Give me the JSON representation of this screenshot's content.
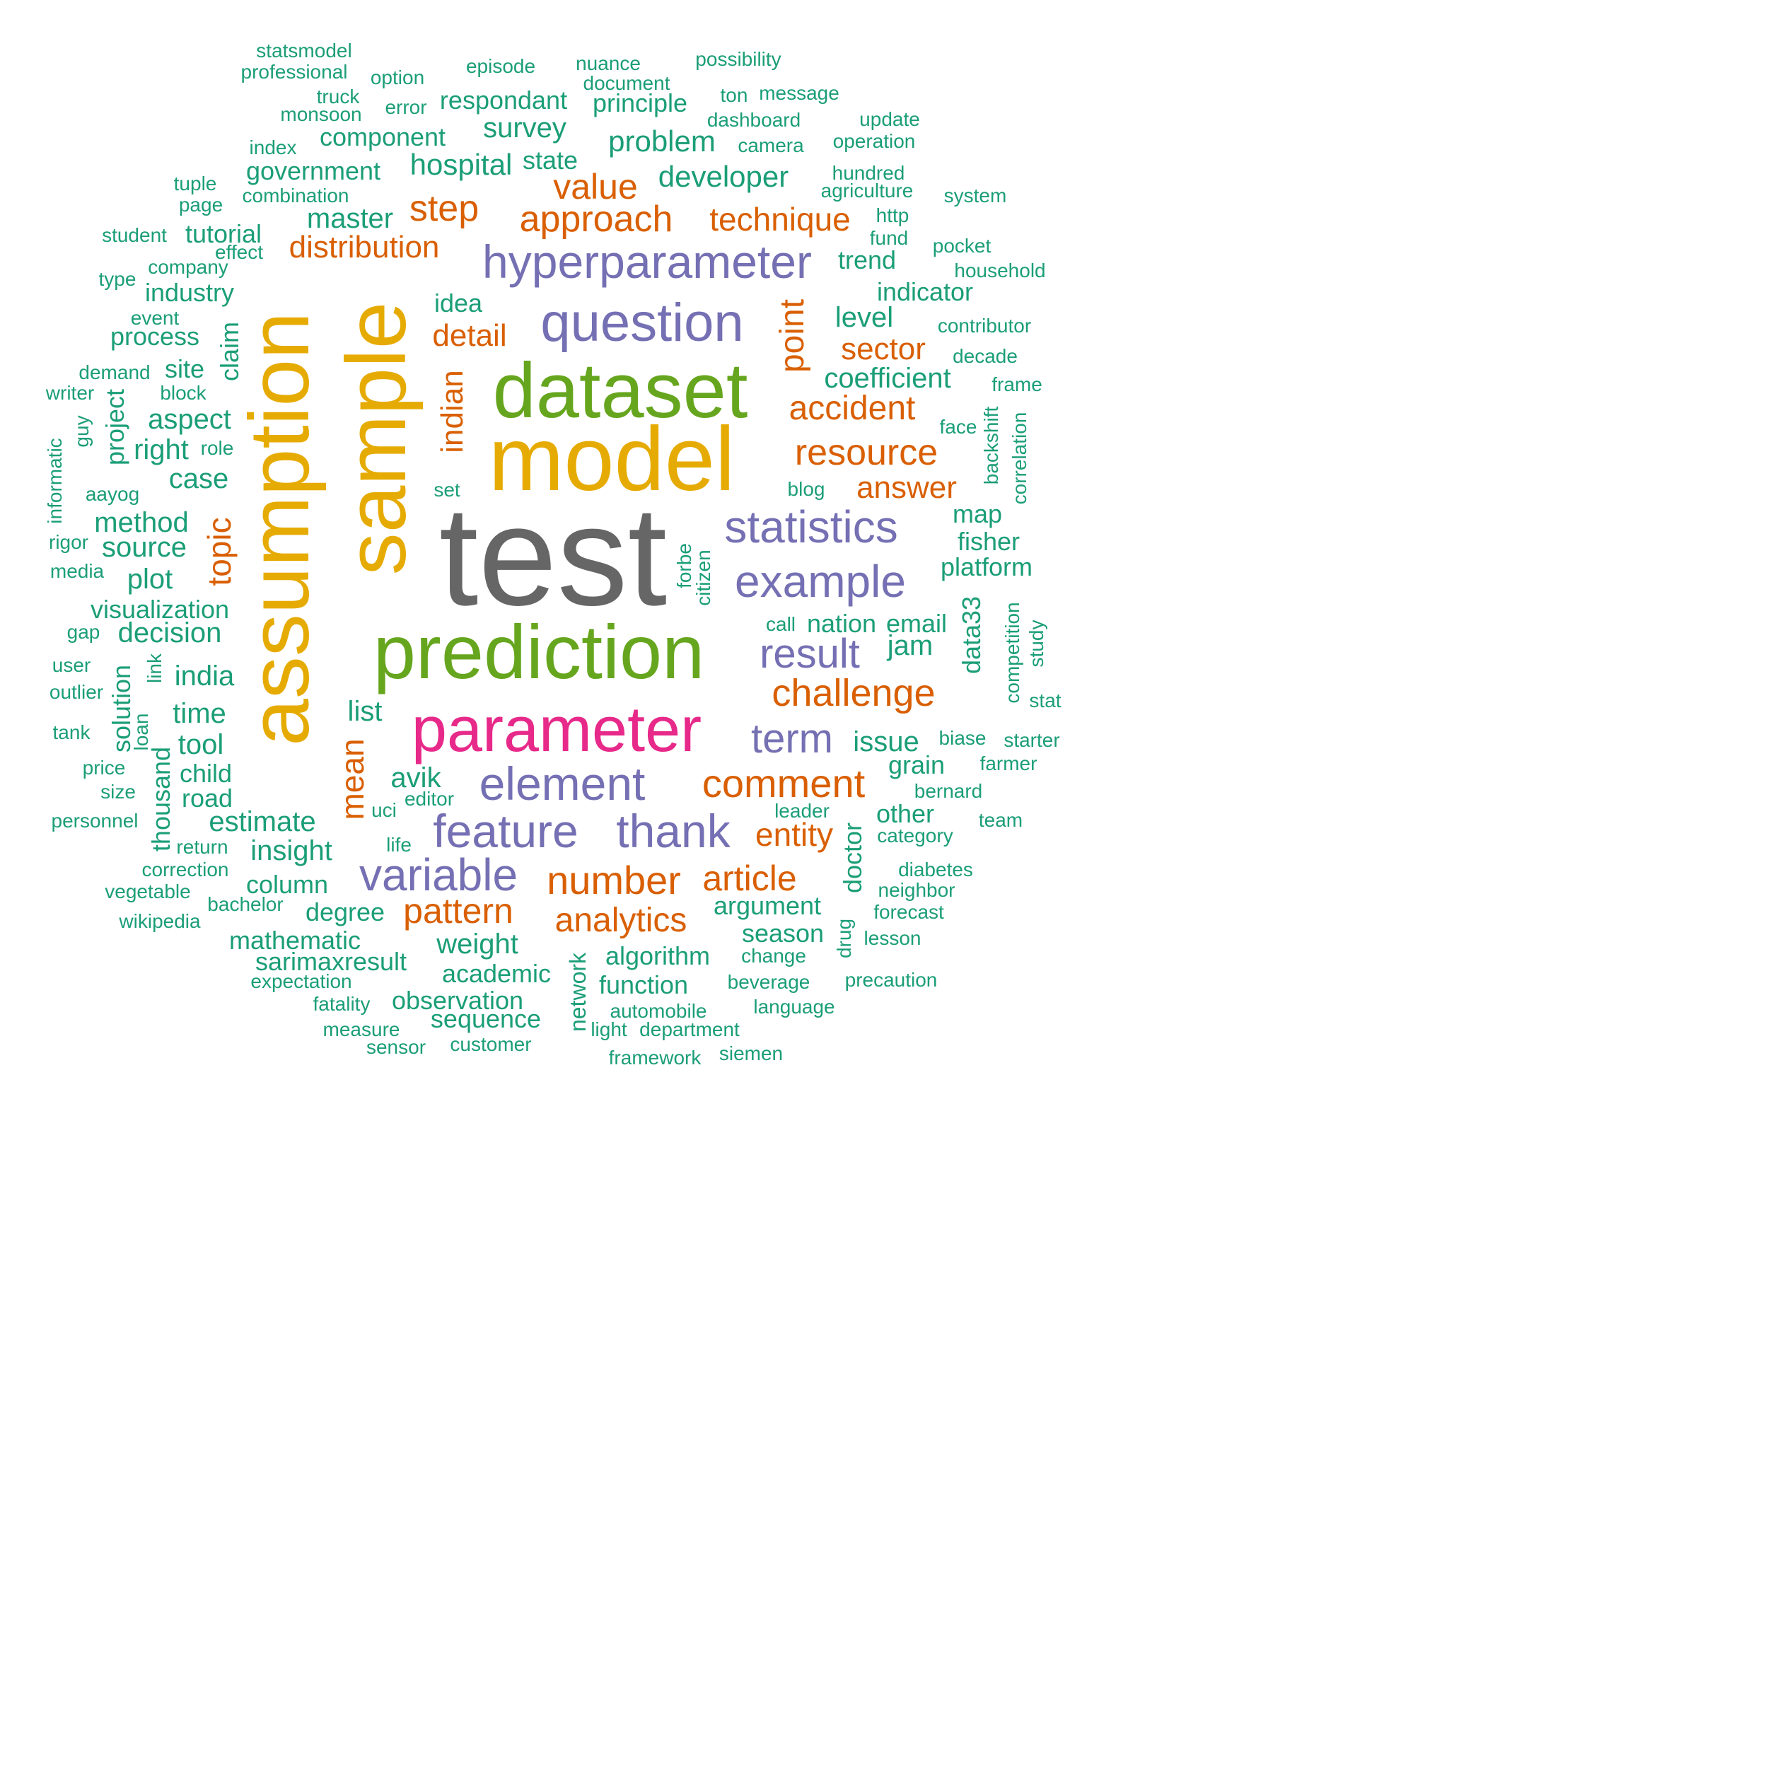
{
  "colors": {
    "gray": "#666666",
    "yellow": "#E6AB02",
    "green": "#66A61E",
    "pink": "#E7298A",
    "purple": "#7570B3",
    "orange": "#D95F02",
    "teal": "#1B9E77"
  },
  "words": [
    {
      "text": "test",
      "color": "gray"
    },
    {
      "text": "sample",
      "color": "yellow"
    },
    {
      "text": "assumption",
      "color": "yellow"
    },
    {
      "text": "model",
      "color": "yellow"
    },
    {
      "text": "dataset",
      "color": "green"
    },
    {
      "text": "prediction",
      "color": "green"
    },
    {
      "text": "parameter",
      "color": "pink"
    },
    {
      "text": "question",
      "color": "purple"
    },
    {
      "text": "hyperparameter",
      "color": "purple"
    },
    {
      "text": "statistics",
      "color": "purple"
    },
    {
      "text": "example",
      "color": "purple"
    },
    {
      "text": "element",
      "color": "purple"
    },
    {
      "text": "feature",
      "color": "purple"
    },
    {
      "text": "thank",
      "color": "purple"
    },
    {
      "text": "variable",
      "color": "purple"
    },
    {
      "text": "result",
      "color": "purple"
    },
    {
      "text": "term",
      "color": "purple"
    },
    {
      "text": "approach",
      "color": "orange"
    },
    {
      "text": "technique",
      "color": "orange"
    },
    {
      "text": "value",
      "color": "orange"
    },
    {
      "text": "step",
      "color": "orange"
    },
    {
      "text": "distribution",
      "color": "orange"
    },
    {
      "text": "point",
      "color": "orange"
    },
    {
      "text": "detail",
      "color": "orange"
    },
    {
      "text": "indian",
      "color": "orange"
    },
    {
      "text": "sector",
      "color": "orange"
    },
    {
      "text": "accident",
      "color": "orange"
    },
    {
      "text": "resource",
      "color": "orange"
    },
    {
      "text": "answer",
      "color": "orange"
    },
    {
      "text": "topic",
      "color": "orange"
    },
    {
      "text": "challenge",
      "color": "orange"
    },
    {
      "text": "comment",
      "color": "orange"
    },
    {
      "text": "mean",
      "color": "orange"
    },
    {
      "text": "entity",
      "color": "orange"
    },
    {
      "text": "number",
      "color": "orange"
    },
    {
      "text": "article",
      "color": "orange"
    },
    {
      "text": "pattern",
      "color": "orange"
    },
    {
      "text": "analytics",
      "color": "orange"
    },
    {
      "text": "statsmodel",
      "color": "teal"
    },
    {
      "text": "professional",
      "color": "teal"
    },
    {
      "text": "option",
      "color": "teal"
    },
    {
      "text": "episode",
      "color": "teal"
    },
    {
      "text": "nuance",
      "color": "teal"
    },
    {
      "text": "possibility",
      "color": "teal"
    },
    {
      "text": "document",
      "color": "teal"
    },
    {
      "text": "truck",
      "color": "teal"
    },
    {
      "text": "ton",
      "color": "teal"
    },
    {
      "text": "message",
      "color": "teal"
    },
    {
      "text": "respondant",
      "color": "teal"
    },
    {
      "text": "principle",
      "color": "teal"
    },
    {
      "text": "error",
      "color": "teal"
    },
    {
      "text": "monsoon",
      "color": "teal"
    },
    {
      "text": "dashboard",
      "color": "teal"
    },
    {
      "text": "update",
      "color": "teal"
    },
    {
      "text": "survey",
      "color": "teal"
    },
    {
      "text": "component",
      "color": "teal"
    },
    {
      "text": "problem",
      "color": "teal"
    },
    {
      "text": "camera",
      "color": "teal"
    },
    {
      "text": "operation",
      "color": "teal"
    },
    {
      "text": "index",
      "color": "teal"
    },
    {
      "text": "hospital",
      "color": "teal"
    },
    {
      "text": "state",
      "color": "teal"
    },
    {
      "text": "government",
      "color": "teal"
    },
    {
      "text": "developer",
      "color": "teal"
    },
    {
      "text": "hundred",
      "color": "teal"
    },
    {
      "text": "tuple",
      "color": "teal"
    },
    {
      "text": "agriculture",
      "color": "teal"
    },
    {
      "text": "system",
      "color": "teal"
    },
    {
      "text": "combination",
      "color": "teal"
    },
    {
      "text": "page",
      "color": "teal"
    },
    {
      "text": "http",
      "color": "teal"
    },
    {
      "text": "master",
      "color": "teal"
    },
    {
      "text": "student",
      "color": "teal"
    },
    {
      "text": "tutorial",
      "color": "teal"
    },
    {
      "text": "fund",
      "color": "teal"
    },
    {
      "text": "pocket",
      "color": "teal"
    },
    {
      "text": "effect",
      "color": "teal"
    },
    {
      "text": "trend",
      "color": "teal"
    },
    {
      "text": "company",
      "color": "teal"
    },
    {
      "text": "household",
      "color": "teal"
    },
    {
      "text": "type",
      "color": "teal"
    },
    {
      "text": "industry",
      "color": "teal"
    },
    {
      "text": "indicator",
      "color": "teal"
    },
    {
      "text": "idea",
      "color": "teal"
    },
    {
      "text": "event",
      "color": "teal"
    },
    {
      "text": "level",
      "color": "teal"
    },
    {
      "text": "process",
      "color": "teal"
    },
    {
      "text": "contributor",
      "color": "teal"
    },
    {
      "text": "claim",
      "color": "teal"
    },
    {
      "text": "decade",
      "color": "teal"
    },
    {
      "text": "demand",
      "color": "teal"
    },
    {
      "text": "site",
      "color": "teal"
    },
    {
      "text": "coefficient",
      "color": "teal"
    },
    {
      "text": "writer",
      "color": "teal"
    },
    {
      "text": "block",
      "color": "teal"
    },
    {
      "text": "frame",
      "color": "teal"
    },
    {
      "text": "project",
      "color": "teal"
    },
    {
      "text": "aspect",
      "color": "teal"
    },
    {
      "text": "guy",
      "color": "teal"
    },
    {
      "text": "backshift",
      "color": "teal"
    },
    {
      "text": "face",
      "color": "teal"
    },
    {
      "text": "correlation",
      "color": "teal"
    },
    {
      "text": "informatic",
      "color": "teal"
    },
    {
      "text": "right",
      "color": "teal"
    },
    {
      "text": "role",
      "color": "teal"
    },
    {
      "text": "case",
      "color": "teal"
    },
    {
      "text": "set",
      "color": "teal"
    },
    {
      "text": "blog",
      "color": "teal"
    },
    {
      "text": "aayog",
      "color": "teal"
    },
    {
      "text": "method",
      "color": "teal"
    },
    {
      "text": "map",
      "color": "teal"
    },
    {
      "text": "rigor",
      "color": "teal"
    },
    {
      "text": "source",
      "color": "teal"
    },
    {
      "text": "fisher",
      "color": "teal"
    },
    {
      "text": "forbe",
      "color": "teal"
    },
    {
      "text": "citizen",
      "color": "teal"
    },
    {
      "text": "media",
      "color": "teal"
    },
    {
      "text": "plot",
      "color": "teal"
    },
    {
      "text": "platform",
      "color": "teal"
    },
    {
      "text": "visualization",
      "color": "teal"
    },
    {
      "text": "competition",
      "color": "teal"
    },
    {
      "text": "data33",
      "color": "teal"
    },
    {
      "text": "call",
      "color": "teal"
    },
    {
      "text": "nation",
      "color": "teal"
    },
    {
      "text": "email",
      "color": "teal"
    },
    {
      "text": "gap",
      "color": "teal"
    },
    {
      "text": "decision",
      "color": "teal"
    },
    {
      "text": "study",
      "color": "teal"
    },
    {
      "text": "jam",
      "color": "teal"
    },
    {
      "text": "user",
      "color": "teal"
    },
    {
      "text": "link",
      "color": "teal"
    },
    {
      "text": "india",
      "color": "teal"
    },
    {
      "text": "outlier",
      "color": "teal"
    },
    {
      "text": "solution",
      "color": "teal"
    },
    {
      "text": "stat",
      "color": "teal"
    },
    {
      "text": "list",
      "color": "teal"
    },
    {
      "text": "time",
      "color": "teal"
    },
    {
      "text": "loan",
      "color": "teal"
    },
    {
      "text": "tank",
      "color": "teal"
    },
    {
      "text": "biase",
      "color": "teal"
    },
    {
      "text": "starter",
      "color": "teal"
    },
    {
      "text": "tool",
      "color": "teal"
    },
    {
      "text": "issue",
      "color": "teal"
    },
    {
      "text": "farmer",
      "color": "teal"
    },
    {
      "text": "grain",
      "color": "teal"
    },
    {
      "text": "price",
      "color": "teal"
    },
    {
      "text": "child",
      "color": "teal"
    },
    {
      "text": "thousand",
      "color": "teal"
    },
    {
      "text": "avik",
      "color": "teal"
    },
    {
      "text": "bernard",
      "color": "teal"
    },
    {
      "text": "size",
      "color": "teal"
    },
    {
      "text": "road",
      "color": "teal"
    },
    {
      "text": "editor",
      "color": "teal"
    },
    {
      "text": "uci",
      "color": "teal"
    },
    {
      "text": "leader",
      "color": "teal"
    },
    {
      "text": "other",
      "color": "teal"
    },
    {
      "text": "team",
      "color": "teal"
    },
    {
      "text": "personnel",
      "color": "teal"
    },
    {
      "text": "estimate",
      "color": "teal"
    },
    {
      "text": "category",
      "color": "teal"
    },
    {
      "text": "return",
      "color": "teal"
    },
    {
      "text": "life",
      "color": "teal"
    },
    {
      "text": "insight",
      "color": "teal"
    },
    {
      "text": "doctor",
      "color": "teal"
    },
    {
      "text": "correction",
      "color": "teal"
    },
    {
      "text": "diabetes",
      "color": "teal"
    },
    {
      "text": "column",
      "color": "teal"
    },
    {
      "text": "vegetable",
      "color": "teal"
    },
    {
      "text": "neighbor",
      "color": "teal"
    },
    {
      "text": "bachelor",
      "color": "teal"
    },
    {
      "text": "argument",
      "color": "teal"
    },
    {
      "text": "forecast",
      "color": "teal"
    },
    {
      "text": "degree",
      "color": "teal"
    },
    {
      "text": "wikipedia",
      "color": "teal"
    },
    {
      "text": "drug",
      "color": "teal"
    },
    {
      "text": "season",
      "color": "teal"
    },
    {
      "text": "weight",
      "color": "teal"
    },
    {
      "text": "lesson",
      "color": "teal"
    },
    {
      "text": "mathematic",
      "color": "teal"
    },
    {
      "text": "network",
      "color": "teal"
    },
    {
      "text": "algorithm",
      "color": "teal"
    },
    {
      "text": "change",
      "color": "teal"
    },
    {
      "text": "sarimaxresult",
      "color": "teal"
    },
    {
      "text": "academic",
      "color": "teal"
    },
    {
      "text": "precaution",
      "color": "teal"
    },
    {
      "text": "expectation",
      "color": "teal"
    },
    {
      "text": "function",
      "color": "teal"
    },
    {
      "text": "beverage",
      "color": "teal"
    },
    {
      "text": "observation",
      "color": "teal"
    },
    {
      "text": "fatality",
      "color": "teal"
    },
    {
      "text": "automobile",
      "color": "teal"
    },
    {
      "text": "language",
      "color": "teal"
    },
    {
      "text": "sequence",
      "color": "teal"
    },
    {
      "text": "measure",
      "color": "teal"
    },
    {
      "text": "light",
      "color": "teal"
    },
    {
      "text": "department",
      "color": "teal"
    },
    {
      "text": "sensor",
      "color": "teal"
    },
    {
      "text": "customer",
      "color": "teal"
    },
    {
      "text": "framework",
      "color": "teal"
    },
    {
      "text": "siemen",
      "color": "teal"
    }
  ]
}
